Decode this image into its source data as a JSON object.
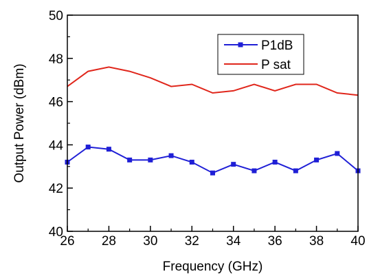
{
  "chart_data": {
    "type": "line",
    "xlabel": "Frequency  (GHz)",
    "ylabel": "Output Power  (dBm)",
    "xlim": [
      26,
      40
    ],
    "ylim": [
      40,
      50
    ],
    "x_ticks": [
      26,
      28,
      30,
      32,
      34,
      36,
      38,
      40
    ],
    "y_ticks": [
      40,
      42,
      44,
      46,
      48,
      50
    ],
    "grid": false,
    "legend_position": "top-right",
    "series": [
      {
        "name": "P1dB",
        "color": "#1f1fd6",
        "marker": "square",
        "x": [
          26,
          27,
          28,
          29,
          30,
          31,
          32,
          33,
          34,
          35,
          36,
          37,
          38,
          39,
          40
        ],
        "y": [
          43.2,
          43.9,
          43.8,
          43.3,
          43.3,
          43.5,
          43.2,
          42.7,
          43.1,
          42.8,
          43.2,
          42.8,
          43.3,
          43.6,
          42.8
        ]
      },
      {
        "name": "P sat",
        "color": "#e0261b",
        "marker": "none",
        "x": [
          26,
          27,
          28,
          29,
          30,
          31,
          32,
          33,
          34,
          35,
          36,
          37,
          38,
          39,
          40
        ],
        "y": [
          46.7,
          47.4,
          47.6,
          47.4,
          47.1,
          46.7,
          46.8,
          46.4,
          46.5,
          46.8,
          46.5,
          46.8,
          46.8,
          46.4,
          46.3
        ]
      }
    ]
  }
}
